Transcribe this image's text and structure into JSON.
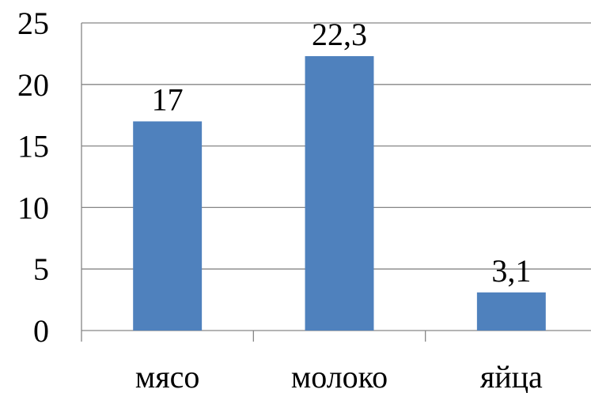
{
  "chart_data": {
    "type": "bar",
    "title": "",
    "xlabel": "",
    "ylabel": "",
    "categories": [
      "мясо",
      "молоко",
      "яйца"
    ],
    "values": [
      17,
      22.3,
      3.1
    ],
    "data_labels": [
      "17",
      "22,3",
      "3,1"
    ],
    "y_ticks": [
      0,
      5,
      10,
      15,
      20,
      25
    ],
    "y_tick_labels": [
      "0",
      "5",
      "10",
      "15",
      "20",
      "25"
    ],
    "ylim": [
      0,
      25
    ],
    "grid": true,
    "legend": "none",
    "colors": {
      "bar": "#4f81bd",
      "grid": "#868686",
      "text": "#000000"
    }
  }
}
